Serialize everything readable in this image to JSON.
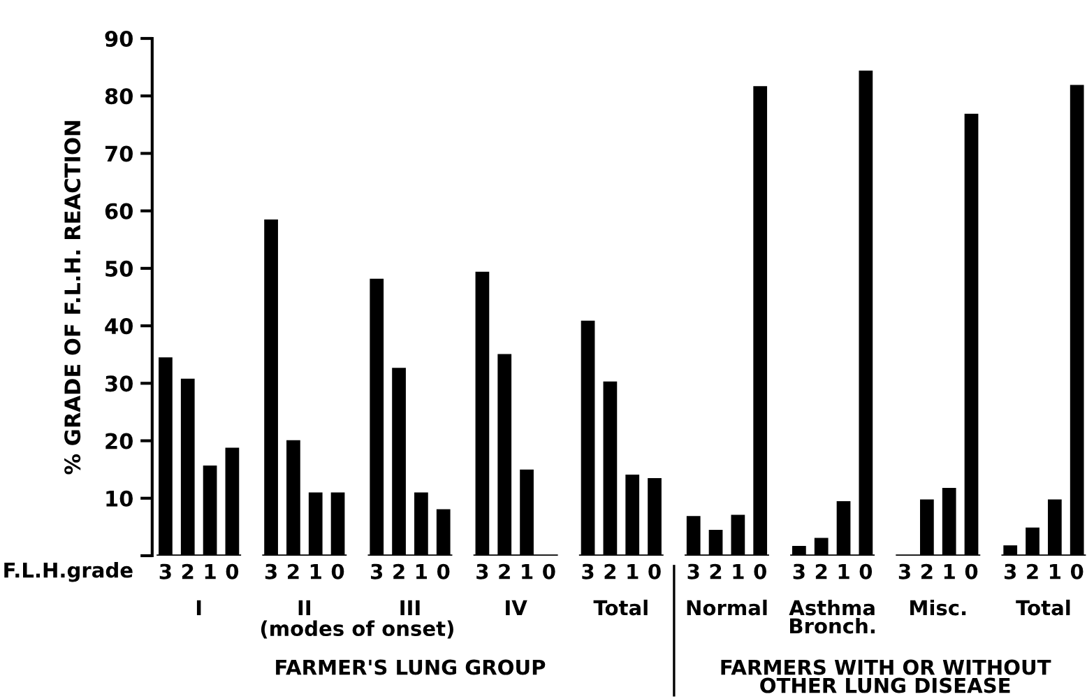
{
  "chart_data": {
    "type": "bar",
    "ylabel": "% GRADE OF F.L.H. REACTION",
    "xlabel": "F.L.H.grade",
    "categories": [
      "3",
      "2",
      "1",
      "0",
      "3",
      "2",
      "1",
      "0",
      "3",
      "2",
      "1",
      "0",
      "3",
      "2",
      "1",
      "0",
      "3",
      "2",
      "1",
      "0",
      "3",
      "2",
      "1",
      "0",
      "3",
      "2",
      "1",
      "0",
      "3",
      "2",
      "1",
      "0",
      "3",
      "2",
      "1",
      "0"
    ],
    "values": [
      34.5,
      30.8,
      15.7,
      18.8,
      58.5,
      20.1,
      11,
      11,
      48.2,
      32.7,
      11,
      8.1,
      49.4,
      35.1,
      15,
      0,
      40.9,
      30.3,
      14.1,
      13.5,
      6.9,
      4.5,
      7.1,
      81.7,
      1.7,
      3.1,
      9.5,
      84.4,
      0,
      9.8,
      11.8,
      76.9,
      1.8,
      4.9,
      9.8,
      81.9
    ],
    "color": "#000000",
    "ylim": [
      0,
      90
    ],
    "yticks": [
      {
        "value": 0,
        "label": null
      },
      10,
      20,
      30,
      40,
      50,
      60,
      70,
      80,
      90
    ],
    "grid": false,
    "annotations": [
      "I",
      "II",
      "III",
      "IV",
      "Total",
      "Normal",
      "Asthma\nBronch.",
      "Misc.",
      "Total",
      "(modes of onset)",
      "FARMER'S LUNG GROUP",
      "FARMERS WITH OR WITHOUT\nOTHER LUNG DISEASE"
    ]
  }
}
